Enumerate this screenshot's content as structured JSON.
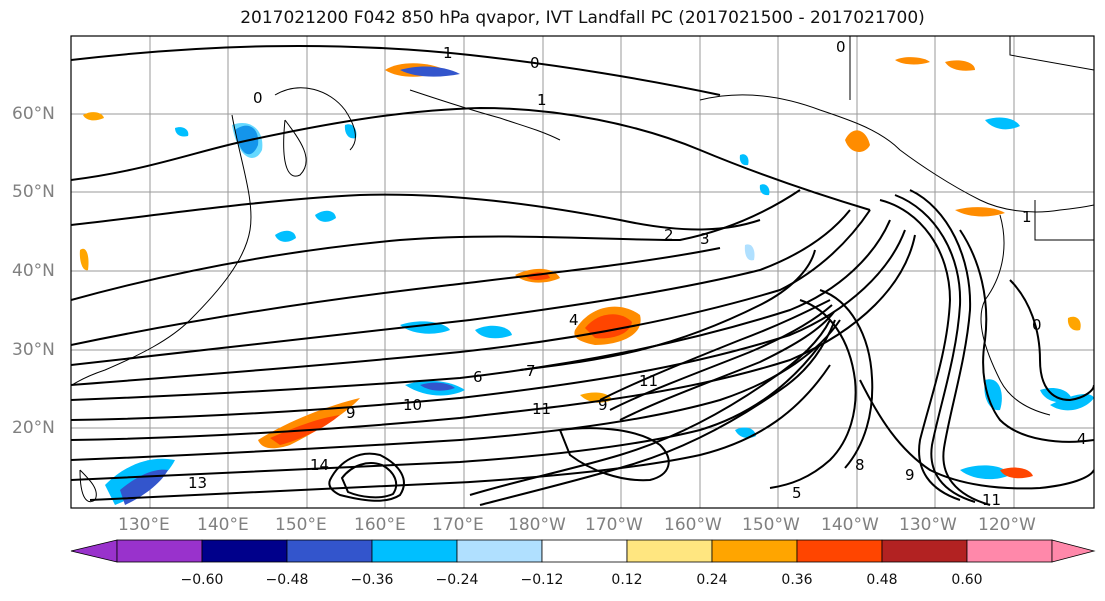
{
  "title": "2017021200 F042 850 hPa qvapor, IVT Landfall PC (2017021500 - 2017021700)",
  "map": {
    "lat_labels": [
      "60°N",
      "50°N",
      "40°N",
      "30°N",
      "20°N"
    ],
    "lon_labels": [
      "130°E",
      "140°E",
      "150°E",
      "160°E",
      "170°E",
      "180°W",
      "170°W",
      "160°W",
      "150°W",
      "140°W",
      "130°W",
      "120°W"
    ],
    "contour_labels": [
      "1",
      "0",
      "0",
      "1",
      "0",
      "2",
      "3",
      "4",
      "6",
      "7",
      "9",
      "10",
      "11",
      "11",
      "13",
      "14",
      "8",
      "9",
      "1",
      "0",
      "4",
      "5",
      "9",
      "11"
    ]
  },
  "colorbar": {
    "ticks": [
      "−0.60",
      "−0.48",
      "−0.36",
      "−0.24",
      "−0.12",
      "0.12",
      "0.24",
      "0.36",
      "0.48",
      "0.60"
    ],
    "colors": [
      "#9932cc",
      "#00008b",
      "#3355cc",
      "#00bfff",
      "#b0e0ff",
      "#ffffff",
      "#ffe680",
      "#ffa500",
      "#ff4500",
      "#b22222",
      "#ff88aa"
    ]
  }
}
